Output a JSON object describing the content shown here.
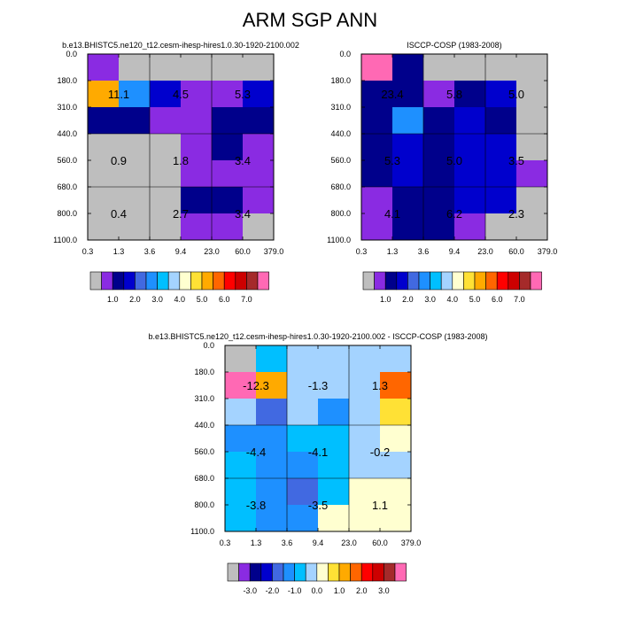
{
  "figure_title": "ARM SGP ANN",
  "palettes": {
    "abs": [
      "#bebebe",
      "#8a2be2",
      "#00008b",
      "#0000cd",
      "#4169e1",
      "#1e90ff",
      "#00bfff",
      "#a4d3ff",
      "#ffffd0",
      "#ffe135",
      "#ffaa00",
      "#ff6600",
      "#ff0000",
      "#cd0000",
      "#a52a2a",
      "#ff69b4"
    ],
    "diff": [
      "#bebebe",
      "#8a2be2",
      "#00008b",
      "#0000cd",
      "#4169e1",
      "#1e90ff",
      "#00bfff",
      "#a4d3ff",
      "#ffffd0",
      "#ffe135",
      "#ffaa00",
      "#ff6600",
      "#ff0000",
      "#cd0000",
      "#a52a2a",
      "#ff69b4"
    ]
  },
  "colorbars": {
    "abs": {
      "labels": [
        "1.0",
        "2.0",
        "3.0",
        "4.0",
        "5.0",
        "6.0",
        "7.0"
      ],
      "label_after_box": [
        1,
        3,
        5,
        7,
        9,
        11,
        13
      ]
    },
    "diff": {
      "labels": [
        "-3.0",
        "-2.0",
        "-1.0",
        "0.0",
        "1.0",
        "2.0",
        "3.0"
      ],
      "label_after_box": [
        1,
        3,
        5,
        7,
        9,
        11,
        13
      ]
    }
  },
  "chart_data": [
    {
      "type": "heatmap",
      "title": "b.e13.BHISTC5.ne120_t12.cesm-ihesp-hires1.0.30-1920-2100.002",
      "x_ticks": [
        "0.3",
        "1.3",
        "3.6",
        "9.4",
        "23.0",
        "60.0",
        "379.0"
      ],
      "y_ticks": [
        "0.0",
        "180.0",
        "310.0",
        "440.0",
        "560.0",
        "680.0",
        "800.0",
        "1100.0"
      ],
      "palette": "abs",
      "cells": [
        [
          1,
          0,
          0,
          0,
          0,
          0
        ],
        [
          10,
          5,
          3,
          1,
          1,
          3
        ],
        [
          2,
          2,
          1,
          1,
          2,
          2
        ],
        [
          0,
          0,
          0,
          1,
          2,
          1
        ],
        [
          0,
          0,
          0,
          1,
          1,
          1
        ],
        [
          0,
          0,
          0,
          2,
          2,
          1
        ],
        [
          0,
          0,
          0,
          1,
          1,
          0
        ]
      ],
      "labels": [
        {
          "text": "11.1",
          "col": 0,
          "row": 1
        },
        {
          "text": "4.5",
          "col": 2,
          "row": 1
        },
        {
          "text": "5.3",
          "col": 4,
          "row": 1
        },
        {
          "text": "0.9",
          "col": 0,
          "row": 3.5
        },
        {
          "text": "1.8",
          "col": 2,
          "row": 3.5
        },
        {
          "text": "3.4",
          "col": 4,
          "row": 3.5
        },
        {
          "text": "0.4",
          "col": 0,
          "row": 5.5
        },
        {
          "text": "2.7",
          "col": 2,
          "row": 5.5
        },
        {
          "text": "3.4",
          "col": 4,
          "row": 5.5
        }
      ]
    },
    {
      "type": "heatmap",
      "title": "ISCCP-COSP (1983-2008)",
      "x_ticks": [
        "0.3",
        "1.3",
        "3.6",
        "9.4",
        "23.0",
        "60.0",
        "379.0"
      ],
      "y_ticks": [
        "0.0",
        "180.0",
        "310.0",
        "440.0",
        "560.0",
        "680.0",
        "800.0",
        "1100.0"
      ],
      "palette": "abs",
      "cells": [
        [
          15,
          2,
          0,
          0,
          0,
          0
        ],
        [
          2,
          2,
          1,
          2,
          3,
          0
        ],
        [
          2,
          5,
          2,
          3,
          2,
          0
        ],
        [
          2,
          3,
          2,
          3,
          3,
          0
        ],
        [
          2,
          3,
          2,
          3,
          3,
          1
        ],
        [
          1,
          2,
          2,
          3,
          3,
          0
        ],
        [
          1,
          2,
          2,
          1,
          0,
          0
        ]
      ],
      "labels": [
        {
          "text": "23.4",
          "col": 0,
          "row": 1
        },
        {
          "text": "5.8",
          "col": 2,
          "row": 1
        },
        {
          "text": "5.0",
          "col": 4,
          "row": 1
        },
        {
          "text": "5.3",
          "col": 0,
          "row": 3.5
        },
        {
          "text": "5.0",
          "col": 2,
          "row": 3.5
        },
        {
          "text": "3.5",
          "col": 4,
          "row": 3.5
        },
        {
          "text": "4.1",
          "col": 0,
          "row": 5.5
        },
        {
          "text": "6.2",
          "col": 2,
          "row": 5.5
        },
        {
          "text": "2.3",
          "col": 4,
          "row": 5.5
        }
      ]
    },
    {
      "type": "heatmap",
      "title": "b.e13.BHISTC5.ne120_t12.cesm-ihesp-hires1.0.30-1920-2100.002 - ISCCP-COSP (1983-2008)",
      "x_ticks": [
        "0.3",
        "1.3",
        "3.6",
        "9.4",
        "23.0",
        "60.0",
        "379.0"
      ],
      "y_ticks": [
        "0.0",
        "180.0",
        "310.0",
        "440.0",
        "560.0",
        "680.0",
        "800.0",
        "1100.0"
      ],
      "palette": "diff",
      "cells": [
        [
          0,
          6,
          7,
          7,
          7,
          7
        ],
        [
          15,
          10,
          7,
          7,
          7,
          11
        ],
        [
          7,
          4,
          7,
          5,
          7,
          9
        ],
        [
          5,
          5,
          6,
          6,
          7,
          8
        ],
        [
          6,
          5,
          5,
          6,
          7,
          7
        ],
        [
          6,
          5,
          4,
          6,
          8,
          8
        ],
        [
          6,
          5,
          5,
          8,
          8,
          8
        ]
      ],
      "labels": [
        {
          "text": "-12.3",
          "col": 0,
          "row": 1
        },
        {
          "text": "-1.3",
          "col": 2,
          "row": 1
        },
        {
          "text": "1.3",
          "col": 4,
          "row": 1
        },
        {
          "text": "-4.4",
          "col": 0,
          "row": 3.5
        },
        {
          "text": "-4.1",
          "col": 2,
          "row": 3.5
        },
        {
          "text": "-0.2",
          "col": 4,
          "row": 3.5
        },
        {
          "text": "-3.8",
          "col": 0,
          "row": 5.5
        },
        {
          "text": "-3.5",
          "col": 2,
          "row": 5.5
        },
        {
          "text": "1.1",
          "col": 4,
          "row": 5.5
        }
      ]
    }
  ]
}
